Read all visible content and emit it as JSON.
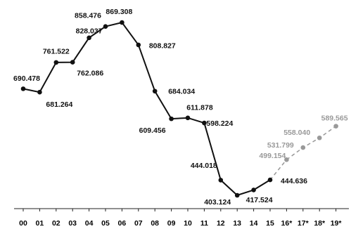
{
  "chart_data": {
    "type": "line",
    "categories": [
      "00",
      "01",
      "02",
      "03",
      "04",
      "05",
      "06",
      "07",
      "08",
      "09",
      "10",
      "11",
      "12",
      "13",
      "14",
      "15",
      "16*",
      "17*",
      "18*",
      "19*"
    ],
    "series": [
      {
        "color": "#111111",
        "values": [
          690.478,
          681.264,
          761.522,
          762.086,
          828.037,
          858.476,
          869.308,
          808.827,
          684.034,
          609.456,
          611.878,
          598.224,
          444.018,
          403.124,
          417.524,
          444.636,
          null,
          null,
          null,
          null
        ],
        "value_labels": [
          "690.478",
          "681.264",
          "761.522",
          "762.086",
          "828.037",
          "858.476",
          "869.308",
          "808.827",
          "684.034",
          "609.456",
          "611.878",
          "598.224",
          "444.018",
          "403.124",
          "417.524",
          "444.636",
          null,
          null,
          null,
          null
        ]
      },
      {
        "color": "#999999",
        "dashed": true,
        "values": [
          null,
          null,
          null,
          null,
          null,
          null,
          null,
          null,
          null,
          null,
          null,
          null,
          null,
          null,
          null,
          null,
          499.154,
          531.799,
          558.04,
          589.565
        ],
        "value_labels": [
          null,
          null,
          null,
          null,
          null,
          null,
          null,
          null,
          null,
          null,
          null,
          null,
          null,
          null,
          null,
          null,
          "499.154",
          "531.799",
          "558.040",
          "589.565"
        ]
      }
    ]
  }
}
